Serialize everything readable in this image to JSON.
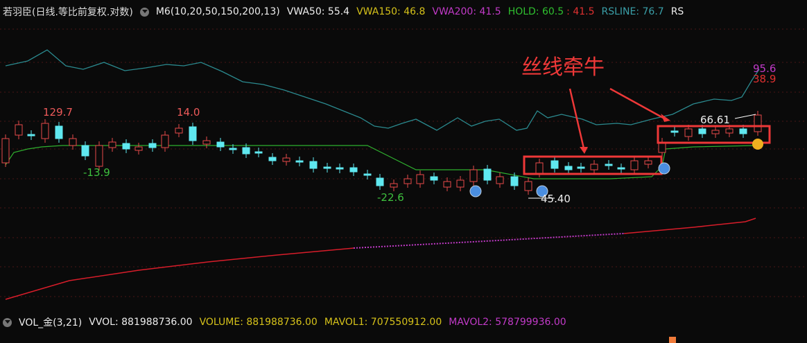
{
  "header": {
    "symbol": "若羽臣(日线.等比前复权.对数)",
    "indicator": "M6(10,20,50,150,200,13)",
    "vwa50": "VWA50: 55.4",
    "vwa150": "VWA150: 46.8",
    "vwa200": "VWA200: 41.5",
    "hold": "HOLD: 60.5",
    "hold_low": ": 41.5",
    "rsline": "RSLINE: 76.7",
    "rs": "RS"
  },
  "annotations": {
    "high_1": "129.7",
    "high_2": "14.0",
    "low_1": "-13.9",
    "low_2": "-22.6",
    "price_low": "45.40",
    "price_high": "66.61",
    "rs_value": "95.6",
    "rs_value_2": "38.9",
    "callout": "丝线牵牛"
  },
  "footer": {
    "indicator": "VOL_金(3,21)",
    "vvol": "VVOL: 881988736.00",
    "volume": "VOLUME: 881988736.00",
    "mavol1": "MAVOL1: 707550912.00",
    "mavol2": "MAVOL2: 578799936.00"
  }
}
